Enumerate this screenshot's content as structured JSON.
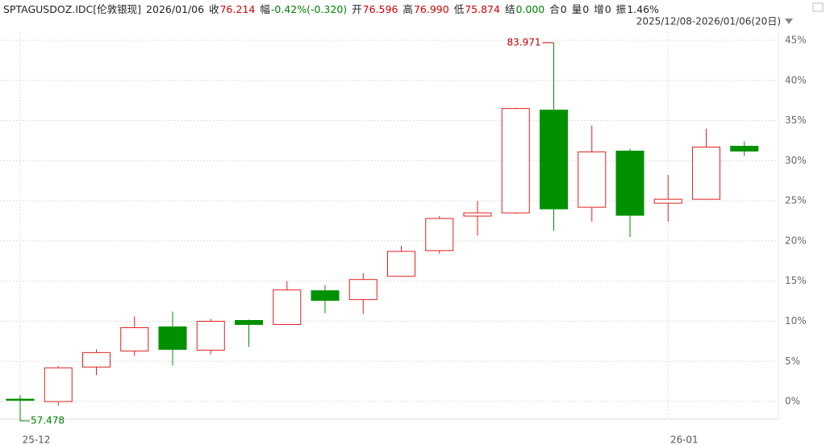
{
  "header": {
    "symbol": "SPTAGUSDOZ.IDC[伦敦银现]",
    "date": "2026/01/06",
    "items": [
      {
        "label": "收",
        "value": "76.214",
        "color": "#d00000"
      },
      {
        "label": "幅",
        "value": "-0.42%(-0.320)",
        "color": "#008000"
      },
      {
        "label": "开",
        "value": "76.596",
        "color": "#d00000"
      },
      {
        "label": "高",
        "value": "76.990",
        "color": "#d00000"
      },
      {
        "label": "低",
        "value": "75.874",
        "color": "#d00000"
      },
      {
        "label": "结",
        "value": "0.000",
        "color": "#008000"
      },
      {
        "label": "合",
        "value": "0",
        "color": "#222222"
      },
      {
        "label": "量",
        "value": "0",
        "color": "#222222"
      },
      {
        "label": "增",
        "value": "0",
        "color": "#222222"
      },
      {
        "label": "振",
        "value": "1.46%",
        "color": "#222222"
      }
    ],
    "range": "2025/12/08-2026/01/06(20日)"
  },
  "chart_data": {
    "type": "candlestick",
    "categories": [
      "25-12",
      null,
      null,
      null,
      null,
      null,
      null,
      null,
      null,
      null,
      null,
      null,
      null,
      null,
      null,
      null,
      null,
      "26-01",
      null,
      null
    ],
    "open": [
      0.3,
      0.0,
      4.3,
      6.3,
      9.3,
      6.4,
      10.1,
      9.6,
      13.8,
      12.7,
      15.6,
      18.8,
      23.1,
      23.5,
      36.3,
      24.2,
      31.2,
      24.7,
      25.2,
      31.8
    ],
    "high": [
      0.8,
      4.4,
      6.5,
      10.6,
      11.2,
      10.3,
      10.2,
      15.0,
      14.5,
      16.0,
      19.4,
      23.1,
      25.0,
      36.6,
      44.7,
      34.4,
      31.5,
      28.2,
      34.0,
      32.4
    ],
    "low": [
      -1.2,
      -0.5,
      3.3,
      5.7,
      4.5,
      5.9,
      6.8,
      9.6,
      11.0,
      10.9,
      15.6,
      18.4,
      20.7,
      23.4,
      21.3,
      22.4,
      20.5,
      22.4,
      25.2,
      30.6
    ],
    "close": [
      0.2,
      4.2,
      6.1,
      9.2,
      6.5,
      10.0,
      9.6,
      13.9,
      12.6,
      15.2,
      18.7,
      22.8,
      23.5,
      36.5,
      24.0,
      31.1,
      23.2,
      25.2,
      31.7,
      31.2
    ],
    "up_color": "#e02020",
    "down_color": "#009000",
    "annotations": [
      {
        "text": "83.971",
        "at": "high",
        "color": "#c00000"
      },
      {
        "text": "57.478",
        "at": "low",
        "color": "#008000"
      }
    ],
    "ylim": [
      -2.2,
      46
    ],
    "yticks": [
      {
        "value": 0,
        "label": "0%"
      },
      {
        "value": 5,
        "label": "5%"
      },
      {
        "value": 10,
        "label": "10%"
      },
      {
        "value": 15,
        "label": "15%"
      },
      {
        "value": 20,
        "label": "20%"
      },
      {
        "value": 25,
        "label": "25%"
      },
      {
        "value": 30,
        "label": "30%"
      },
      {
        "value": 35,
        "label": "35%"
      },
      {
        "value": 40,
        "label": "40%"
      },
      {
        "value": 45,
        "label": "45%"
      }
    ],
    "grid": true
  }
}
